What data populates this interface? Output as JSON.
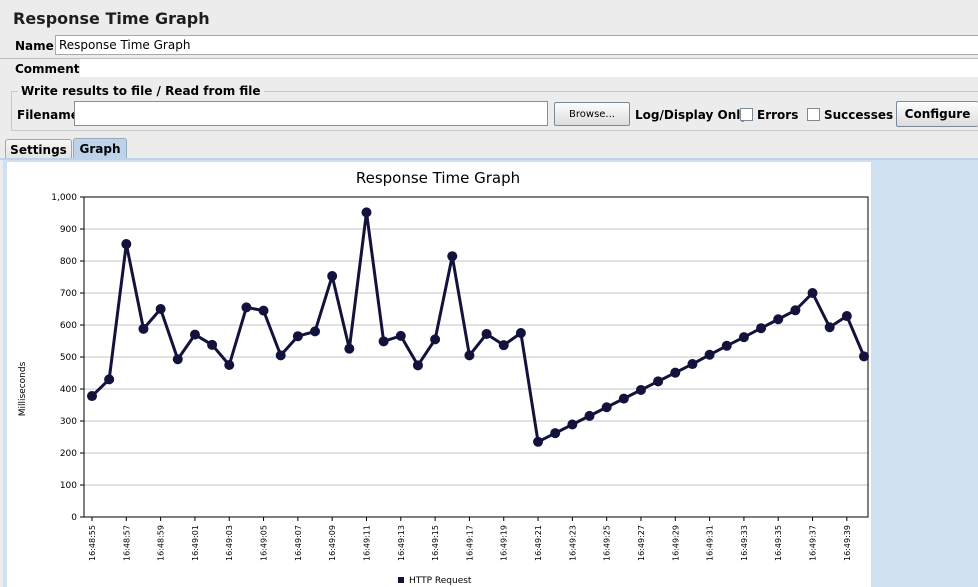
{
  "window": {
    "title": "Response Time Graph"
  },
  "form": {
    "name_label": "Name:",
    "name_value": "Response Time Graph",
    "comments_label": "Comments:",
    "comments_value": ""
  },
  "file_panel": {
    "legend": "Write results to file / Read from file",
    "filename_label": "Filename",
    "filename_value": "",
    "browse_label": "Browse...",
    "log_display_label": "Log/Display Only:",
    "errors_label": "Errors",
    "errors_checked": false,
    "successes_label": "Successes",
    "successes_checked": false,
    "configure_label": "Configure"
  },
  "tabs": [
    {
      "label": "Settings",
      "active": false
    },
    {
      "label": "Graph",
      "active": true
    }
  ],
  "colors": {
    "series": "#12123c",
    "tab_active": "#bcd3ea",
    "panel": "#cfe0f1"
  },
  "chart_data": {
    "type": "line",
    "title": "Response Time Graph",
    "ylabel": "Milliseconds",
    "xlabel": "",
    "ylim": [
      0,
      1000
    ],
    "yticks": [
      "0",
      "100",
      "200",
      "300",
      "400",
      "500",
      "600",
      "700",
      "800",
      "900",
      "1,000"
    ],
    "grid": true,
    "legend": "bottom",
    "x_tick_labels": [
      "16:48:55",
      "16:48:57",
      "16:48:59",
      "16:49:01",
      "16:49:03",
      "16:49:05",
      "16:49:07",
      "16:49:09",
      "16:49:11",
      "16:49:13",
      "16:49:15",
      "16:49:17",
      "16:49:19",
      "16:49:21",
      "16:49:23",
      "16:49:25",
      "16:49:27",
      "16:49:29",
      "16:49:31",
      "16:49:33",
      "16:49:35",
      "16:49:37",
      "16:49:39"
    ],
    "series": [
      {
        "name": "HTTP Request",
        "x": [
          "16:48:55",
          "16:48:56",
          "16:48:57",
          "16:48:58",
          "16:48:59",
          "16:49:00",
          "16:49:01",
          "16:49:02",
          "16:49:03",
          "16:49:04",
          "16:49:05",
          "16:49:06",
          "16:49:07",
          "16:49:08",
          "16:49:09",
          "16:49:10",
          "16:49:11",
          "16:49:12",
          "16:49:13",
          "16:49:14",
          "16:49:15",
          "16:49:16",
          "16:49:17",
          "16:49:18",
          "16:49:19",
          "16:49:20",
          "16:49:21",
          "16:49:22",
          "16:49:23",
          "16:49:24",
          "16:49:25",
          "16:49:26",
          "16:49:27",
          "16:49:28",
          "16:49:29",
          "16:49:30",
          "16:49:31",
          "16:49:32",
          "16:49:33",
          "16:49:34",
          "16:49:35",
          "16:49:36",
          "16:49:37",
          "16:49:38",
          "16:49:39",
          "16:49:40"
        ],
        "values": [
          378,
          430,
          853,
          588,
          650,
          493,
          570,
          538,
          475,
          655,
          645,
          505,
          565,
          580,
          753,
          526,
          952,
          549,
          566,
          474,
          555,
          815,
          505,
          572,
          537,
          575,
          235,
          262,
          289,
          316,
          343,
          370,
          397,
          424,
          451,
          478,
          507,
          535,
          562,
          590,
          618,
          646,
          700,
          593,
          628,
          502
        ]
      }
    ]
  }
}
